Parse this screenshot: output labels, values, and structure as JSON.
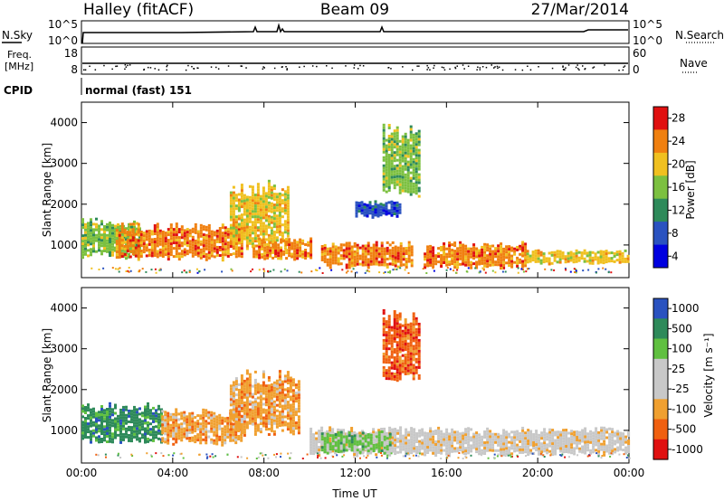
{
  "header": {
    "station": "Halley (fitACF)",
    "beam": "Beam 09",
    "date": "27/Mar/2014"
  },
  "strips": {
    "nsky_label": "N.Sky",
    "nsearch_label": "N.Search",
    "nsky_ticks": [
      "10^5",
      "10^0"
    ],
    "nsearch_ticks": [
      "10^5",
      "10^0"
    ],
    "freq_label_line1": "Freq.",
    "freq_label_line2": "[MHz]",
    "freq_ticks": [
      "18",
      "8"
    ],
    "nave_label": "Nave",
    "nave_ticks": [
      "60",
      "0"
    ],
    "cpid_label": "CPID",
    "cpid_text": "normal (fast) 151"
  },
  "chart_data": [
    {
      "type": "heatmap",
      "name": "power",
      "ylabel": "Slant Range [km]",
      "xlabel": "",
      "x_ticks": [
        "00:00",
        "04:00",
        "08:00",
        "12:00",
        "16:00",
        "20:00",
        "00:00"
      ],
      "y_ticks": [
        "1000",
        "2000",
        "3000",
        "4000"
      ],
      "xlim": [
        0,
        24
      ],
      "ylim": [
        200,
        4500
      ],
      "colorbar_label": "Power [dB]",
      "colorbar_ticks": [
        "28",
        "24",
        "20",
        "16",
        "12",
        "8",
        "4"
      ],
      "colors": [
        "#0000e0",
        "#2a52c0",
        "#2e8a5a",
        "#7cc040",
        "#f0c020",
        "#f08010",
        "#e01010"
      ],
      "regions": [
        {
          "t0": 0.0,
          "t1": 2.5,
          "r0": 700,
          "r1": 1700,
          "level": 3
        },
        {
          "t0": 1.5,
          "t1": 7.0,
          "r0": 650,
          "r1": 1550,
          "level": 5
        },
        {
          "t0": 6.5,
          "t1": 9.0,
          "r0": 900,
          "r1": 2600,
          "level": 4
        },
        {
          "t0": 7.5,
          "t1": 10.0,
          "r0": 650,
          "r1": 1200,
          "level": 5
        },
        {
          "t0": 10.5,
          "t1": 14.5,
          "r0": 450,
          "r1": 1100,
          "level": 5
        },
        {
          "t0": 12.0,
          "t1": 14.0,
          "r0": 1700,
          "r1": 2100,
          "level": 1
        },
        {
          "t0": 15.0,
          "t1": 19.5,
          "r0": 450,
          "r1": 1100,
          "level": 5
        },
        {
          "t0": 19.5,
          "t1": 24.0,
          "r0": 550,
          "r1": 900,
          "level": 4
        },
        {
          "t0": 13.2,
          "t1": 14.8,
          "r0": 2200,
          "r1": 4000,
          "level": 3
        }
      ]
    },
    {
      "type": "heatmap",
      "name": "velocity",
      "ylabel": "Slant Range [km]",
      "xlabel": "Time UT",
      "x_ticks": [
        "00:00",
        "04:00",
        "08:00",
        "12:00",
        "16:00",
        "20:00",
        "00:00"
      ],
      "y_ticks": [
        "1000",
        "2000",
        "3000",
        "4000"
      ],
      "xlim": [
        0,
        24
      ],
      "ylim": [
        200,
        4500
      ],
      "colorbar_label": "Velocity [m s⁻¹]",
      "colorbar_ticks": [
        "1000",
        "500",
        "100",
        "25",
        "-25",
        "-100",
        "-500",
        "-1000"
      ],
      "colors": [
        "#e01010",
        "#f06010",
        "#f0a030",
        "#c8c8c8",
        "#c8c8c8",
        "#60c040",
        "#2e8a5a",
        "#2a52c0"
      ],
      "regions": [
        {
          "t0": 0.0,
          "t1": 3.5,
          "r0": 700,
          "r1": 1700,
          "level": 6
        },
        {
          "t0": 3.5,
          "t1": 7.0,
          "r0": 650,
          "r1": 1550,
          "level": 2
        },
        {
          "t0": 6.5,
          "t1": 9.5,
          "r0": 900,
          "r1": 2500,
          "level": 2
        },
        {
          "t0": 10.0,
          "t1": 24.0,
          "r0": 400,
          "r1": 1100,
          "level": 3
        },
        {
          "t0": 10.5,
          "t1": 13.5,
          "r0": 450,
          "r1": 1000,
          "level": 5
        },
        {
          "t0": 13.2,
          "t1": 14.8,
          "r0": 2200,
          "r1": 4000,
          "level": 1
        }
      ]
    }
  ]
}
